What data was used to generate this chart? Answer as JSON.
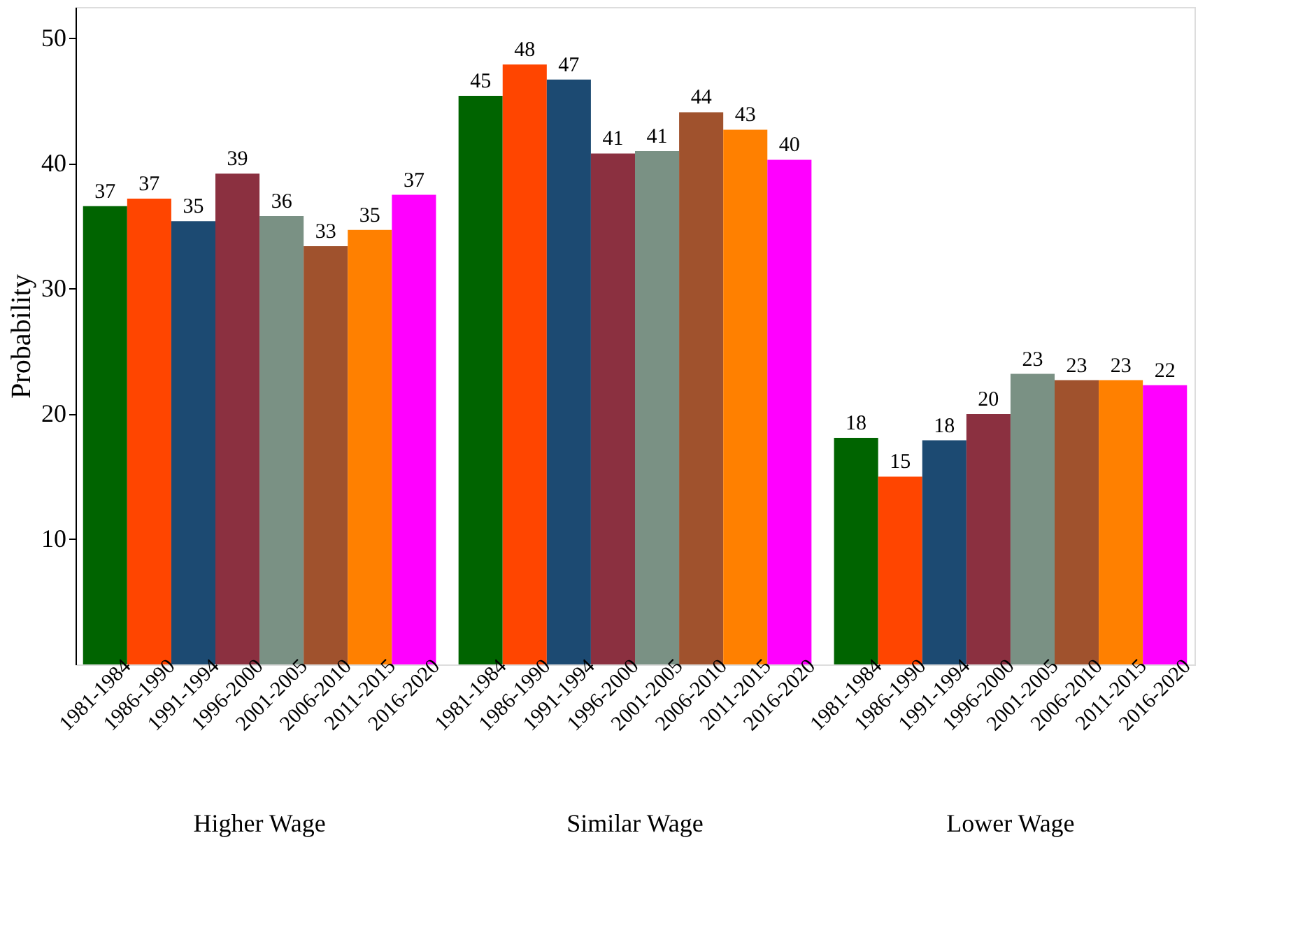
{
  "chart_data": {
    "type": "bar",
    "ylabel": "Probability",
    "categories": [
      "Higher Wage",
      "Similar Wage",
      "Lower Wage"
    ],
    "series": [
      {
        "name": "1981-1984",
        "color": "#006400",
        "values": [
          36.6,
          45.4,
          18.1
        ],
        "value_labels": [
          "37",
          "45",
          "18"
        ]
      },
      {
        "name": "1986-1990",
        "color": "#ff4500",
        "values": [
          37.2,
          47.9,
          15.0
        ],
        "value_labels": [
          "37",
          "48",
          "15"
        ]
      },
      {
        "name": "1991-1994",
        "color": "#1c4a72",
        "values": [
          35.4,
          46.7,
          17.9
        ],
        "value_labels": [
          "35",
          "47",
          "18"
        ]
      },
      {
        "name": "1996-2000",
        "color": "#8b3040",
        "values": [
          39.2,
          40.8,
          20.0
        ],
        "value_labels": [
          "39",
          "41",
          "20"
        ]
      },
      {
        "name": "2001-2005",
        "color": "#7a9184",
        "values": [
          35.8,
          41.0,
          23.2
        ],
        "value_labels": [
          "36",
          "41",
          "23"
        ]
      },
      {
        "name": "2006-2010",
        "color": "#a0522d",
        "values": [
          33.4,
          44.1,
          22.7
        ],
        "value_labels": [
          "33",
          "44",
          "23"
        ]
      },
      {
        "name": "2011-2015",
        "color": "#ff8000",
        "values": [
          34.7,
          42.7,
          22.7
        ],
        "value_labels": [
          "35",
          "43",
          "23"
        ]
      },
      {
        "name": "2016-2020",
        "color": "#ff00ff",
        "values": [
          37.5,
          40.3,
          22.3
        ],
        "value_labels": [
          "37",
          "40",
          "22"
        ]
      }
    ],
    "ylim": [
      0,
      52.5
    ],
    "yticks": [
      10,
      20,
      30,
      40,
      50
    ],
    "grid": false,
    "legend": false
  }
}
